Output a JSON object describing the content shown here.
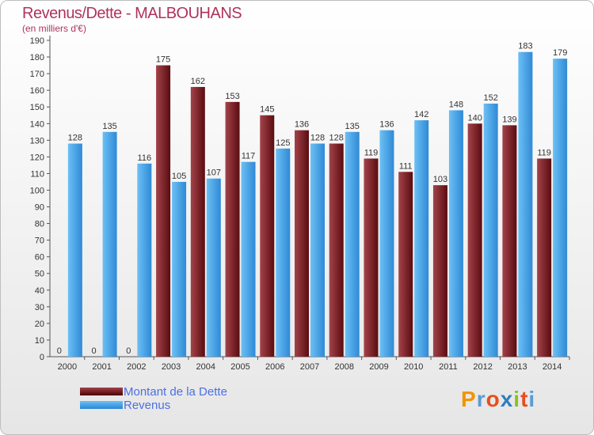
{
  "chart_data": {
    "type": "bar",
    "title": "Revenus/Dette - MALBOUHANS",
    "subtitle": "(en milliers d'€)",
    "categories": [
      "2000",
      "2001",
      "2002",
      "2003",
      "2004",
      "2005",
      "2006",
      "2007",
      "2008",
      "2009",
      "2010",
      "2011",
      "2012",
      "2013",
      "2014"
    ],
    "series": [
      {
        "name": "Montant de la Dette",
        "color": "#7a1f24",
        "values": [
          0,
          0,
          0,
          175,
          162,
          153,
          145,
          136,
          128,
          119,
          111,
          103,
          140,
          139,
          119
        ]
      },
      {
        "name": "Revenus",
        "color": "#4aa3e6",
        "values": [
          128,
          135,
          116,
          105,
          107,
          117,
          125,
          128,
          135,
          136,
          142,
          148,
          152,
          183,
          179
        ]
      }
    ],
    "ylim": [
      0,
      190
    ],
    "ytick_step": 10,
    "grid": false,
    "legend_position": "bottom-left"
  },
  "logo": {
    "text": "Proxiti",
    "letters": [
      "P",
      "r",
      "o",
      "x",
      "i",
      "t",
      "i"
    ],
    "colors": [
      "#f29400",
      "#5b9bd5",
      "#e84e1b",
      "#2e7fc1",
      "#8cbf26",
      "#e84e1b",
      "#5b9bd5"
    ]
  }
}
